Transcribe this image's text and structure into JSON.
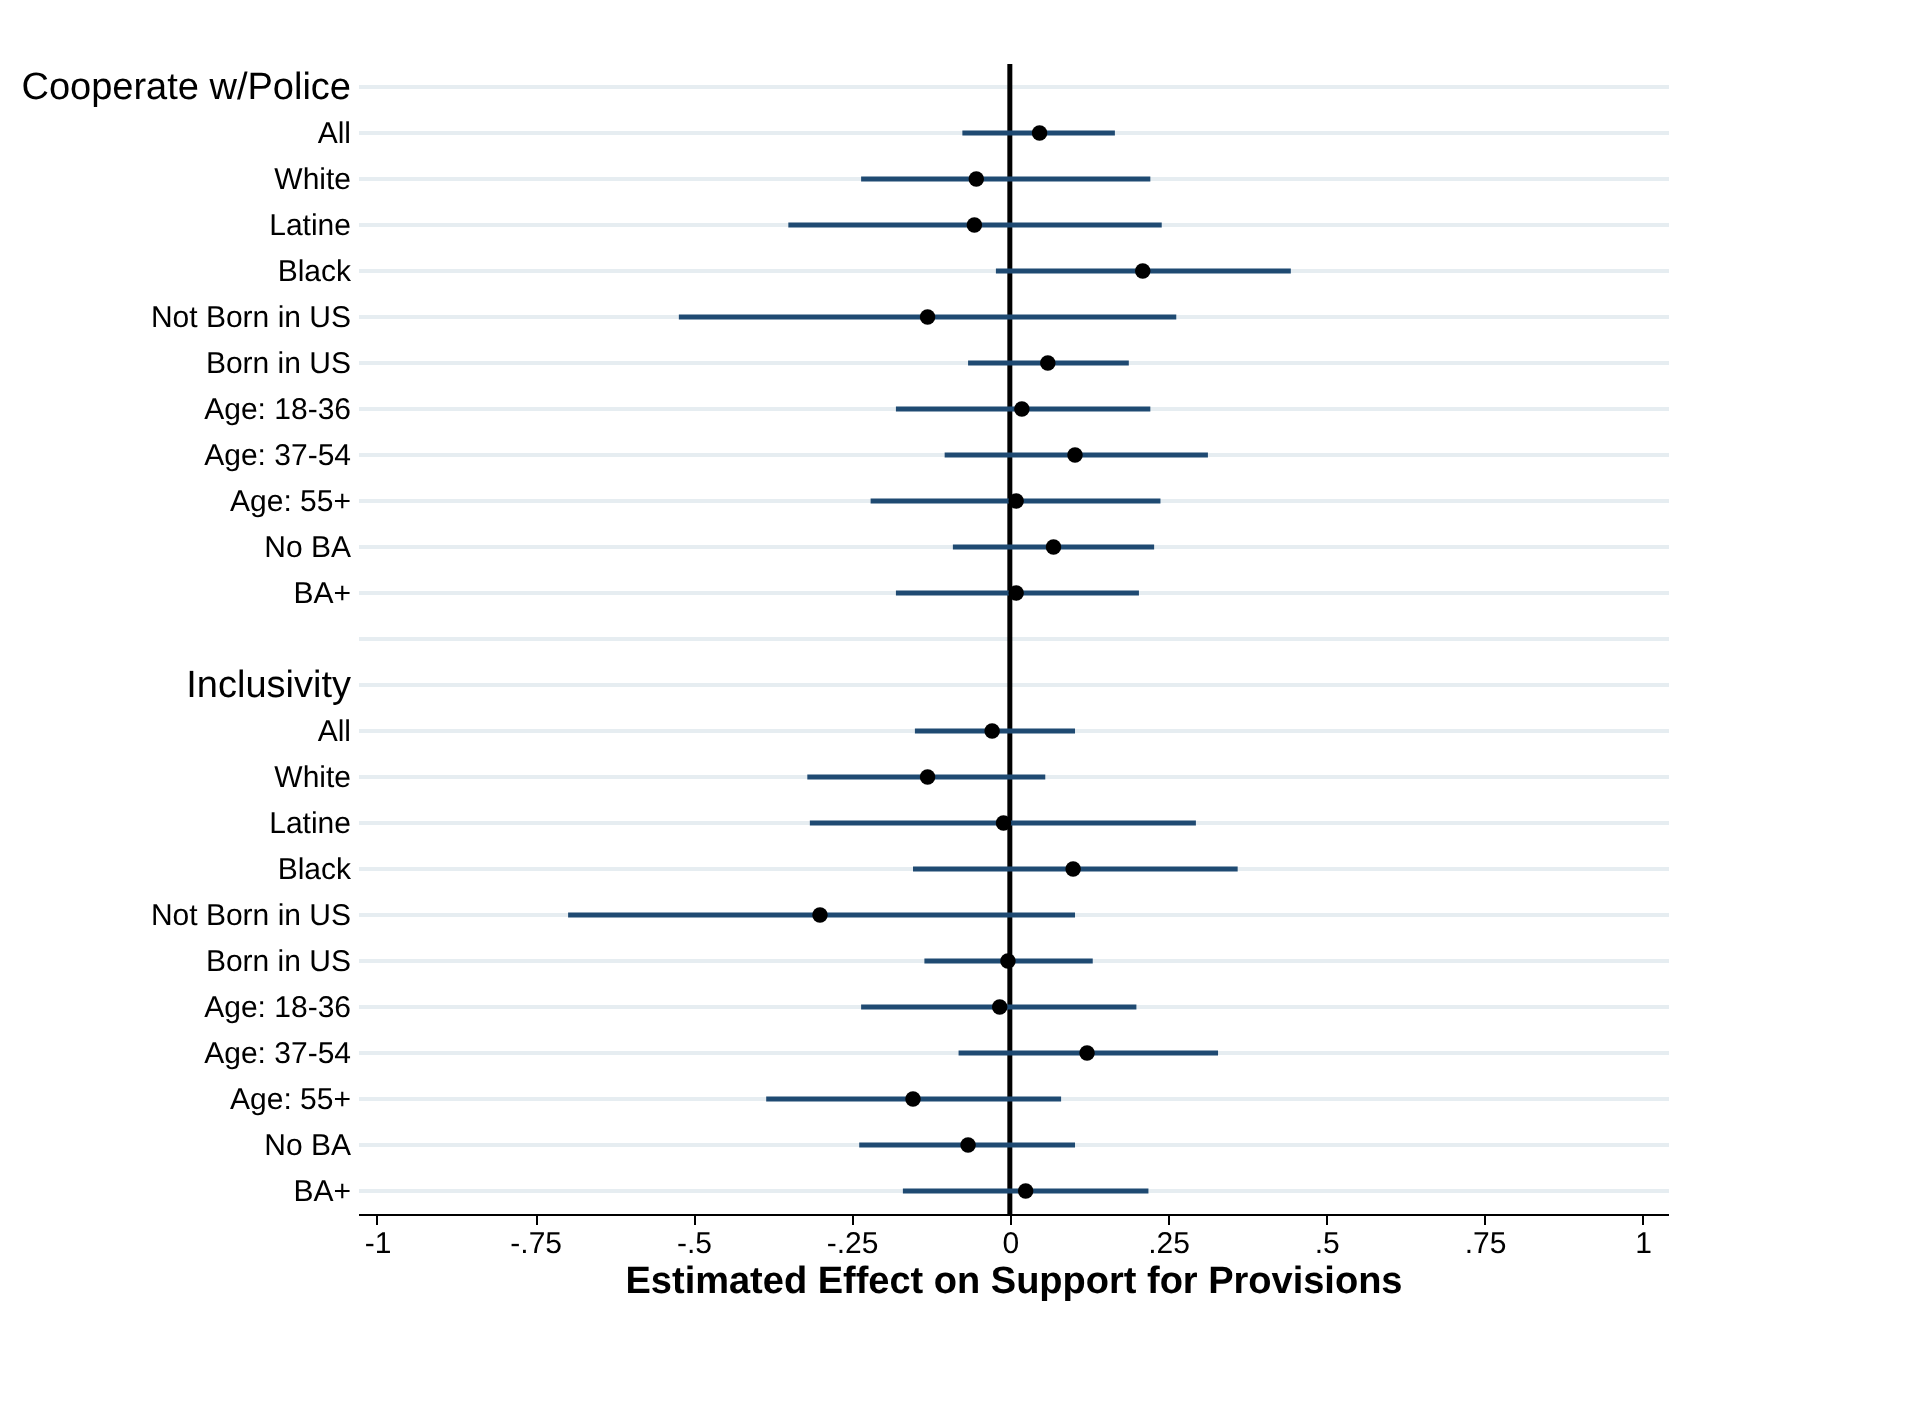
{
  "chart_data": {
    "type": "scatter",
    "xlabel": "Estimated Effect on Support for Provisions",
    "categories": [
      "Cooperate w/Police",
      "All",
      "White",
      "Latine",
      "Black",
      "Not Born in US",
      "Born in US",
      "Age: 18-36",
      "Age: 37-54",
      "Age: 55+",
      "No BA",
      "BA+",
      null,
      "Inclusivity",
      "All",
      "White",
      "Latine",
      "Black",
      "Not Born in US",
      "Born in US",
      "Age: 18-36",
      "Age: 37-54",
      "Age: 55+",
      "No BA",
      "BA+"
    ],
    "series": [
      {
        "color": "#000000",
        "values": [
          null,
          0.047,
          -0.053,
          -0.056,
          0.21,
          -0.13,
          0.06,
          0.019,
          0.103,
          0.01,
          0.069,
          0.01,
          null,
          null,
          -0.028,
          -0.13,
          -0.01,
          0.1,
          -0.3,
          -0.003,
          -0.016,
          0.122,
          -0.153,
          -0.066,
          0.025
        ],
        "errors": [
          null,
          [
            -0.075,
            0.166
          ],
          [
            -0.235,
            0.222
          ],
          [
            -0.35,
            0.24
          ],
          [
            -0.022,
            0.444
          ],
          [
            -0.523,
            0.263
          ],
          [
            -0.066,
            0.188
          ],
          [
            -0.18,
            0.222
          ],
          [
            -0.103,
            0.313
          ],
          [
            -0.22,
            0.238
          ],
          [
            -0.09,
            0.228
          ],
          [
            -0.18,
            0.204
          ],
          null,
          null,
          [
            -0.15,
            0.103
          ],
          [
            -0.32,
            0.056
          ],
          [
            -0.316,
            0.294
          ],
          [
            -0.153,
            0.36
          ],
          [
            -0.698,
            0.103
          ],
          [
            -0.135,
            0.131
          ],
          [
            -0.235,
            0.2
          ],
          [
            -0.081,
            0.329
          ],
          [
            -0.385,
            0.081
          ],
          [
            -0.238,
            0.103
          ],
          [
            -0.169,
            0.219
          ]
        ]
      }
    ],
    "xlim": [
      -1.03,
      1.04
    ],
    "xticks": [
      -1,
      {
        "value": -0.75,
        "label": "-.75"
      },
      {
        "value": -0.5,
        "label": "-.5"
      },
      {
        "value": -0.25,
        "label": "-.25"
      },
      0,
      {
        "value": 0.25,
        "label": ".25"
      },
      {
        "value": 0.5,
        "label": ".5"
      },
      {
        "value": 0.75,
        "label": ".75"
      },
      1
    ],
    "ref_lines": [
      {
        "axis": "x",
        "value": 0,
        "color": "#000000"
      }
    ],
    "grid": "y",
    "marker": "circle",
    "orientation": "horizontal"
  }
}
